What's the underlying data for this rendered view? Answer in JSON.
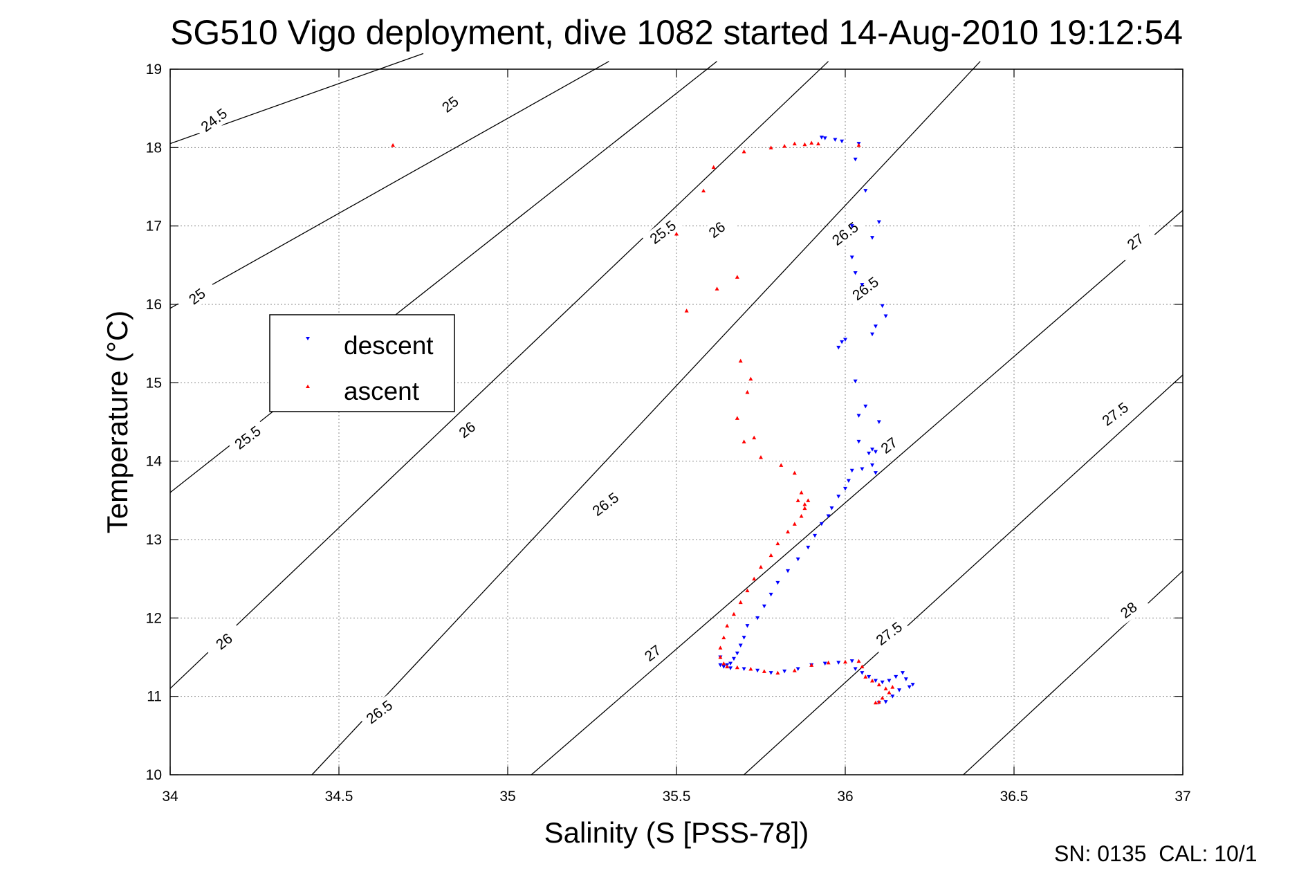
{
  "chart_data": {
    "type": "scatter",
    "title": "SG510 Vigo deployment, dive 1082 started 14-Aug-2010 19:12:54",
    "xlabel": "Salinity (S [PSS-78])",
    "ylabel": "Temperature (°C)",
    "xlim": [
      34,
      37
    ],
    "ylim": [
      10,
      19
    ],
    "xticks": [
      "34",
      "34.5",
      "35",
      "35.5",
      "36",
      "36.5",
      "37"
    ],
    "yticks": [
      "10",
      "11",
      "12",
      "13",
      "14",
      "15",
      "16",
      "17",
      "18",
      "19"
    ],
    "grid": true,
    "legend_position": "center-left",
    "footer": "SN: 0135  CAL: 10/1",
    "colors": {
      "descent": "#0000ff",
      "ascent": "#ff0000",
      "contour": "#000000"
    },
    "density_contours": [
      {
        "sigma": "24.5",
        "lines": [
          {
            "x": [
              34.0,
              34.75
            ],
            "y": [
              18.05,
              19.2
            ]
          }
        ]
      },
      {
        "sigma": "25",
        "lines": [
          {
            "x": [
              34.0,
              35.3
            ],
            "y": [
              15.95,
              19.1
            ]
          }
        ]
      },
      {
        "sigma": "25.5",
        "lines": [
          {
            "x": [
              34.0,
              35.62
            ],
            "y": [
              13.6,
              19.1
            ]
          }
        ]
      },
      {
        "sigma": "26",
        "lines": [
          {
            "x": [
              34.0,
              35.95
            ],
            "y": [
              11.1,
              19.1
            ]
          }
        ]
      },
      {
        "sigma": "26.5",
        "lines": [
          {
            "x": [
              34.42,
              36.4
            ],
            "y": [
              10.0,
              19.1
            ]
          }
        ]
      },
      {
        "sigma": "27",
        "lines": [
          {
            "x": [
              35.07,
              37.0
            ],
            "y": [
              10.0,
              17.2
            ]
          }
        ]
      },
      {
        "sigma": "27.5",
        "lines": [
          {
            "x": [
              35.7,
              37.0
            ],
            "y": [
              10.0,
              15.1
            ]
          }
        ]
      },
      {
        "sigma": "28",
        "lines": [
          {
            "x": [
              36.35,
              37.0
            ],
            "y": [
              10.0,
              12.6
            ]
          }
        ]
      }
    ],
    "contour_labels": [
      {
        "text": "24.5",
        "x": 34.13,
        "y": 18.35
      },
      {
        "text": "25",
        "x": 34.83,
        "y": 18.55
      },
      {
        "text": "25",
        "x": 34.08,
        "y": 16.1
      },
      {
        "text": "25.5",
        "x": 35.46,
        "y": 16.92
      },
      {
        "text": "25.5",
        "x": 34.23,
        "y": 14.3
      },
      {
        "text": "26",
        "x": 35.62,
        "y": 16.95
      },
      {
        "text": "26",
        "x": 34.88,
        "y": 14.4
      },
      {
        "text": "26",
        "x": 34.16,
        "y": 11.7
      },
      {
        "text": "26.5",
        "x": 36.0,
        "y": 16.9
      },
      {
        "text": "26.5",
        "x": 36.06,
        "y": 16.2
      },
      {
        "text": "26.5",
        "x": 35.29,
        "y": 13.45
      },
      {
        "text": "26.5",
        "x": 34.62,
        "y": 10.8
      },
      {
        "text": "27",
        "x": 36.86,
        "y": 16.8
      },
      {
        "text": "27",
        "x": 36.13,
        "y": 14.2
      },
      {
        "text": "27",
        "x": 35.43,
        "y": 11.55
      },
      {
        "text": "27.5",
        "x": 36.8,
        "y": 14.6
      },
      {
        "text": "27.5",
        "x": 36.13,
        "y": 11.8
      },
      {
        "text": "28",
        "x": 36.84,
        "y": 12.1
      }
    ],
    "series": [
      {
        "name": "descent",
        "marker": "triangle-down",
        "x": [
          35.93,
          35.94,
          35.97,
          35.99,
          36.04,
          36.03,
          36.06,
          36.02,
          36.1,
          36.08,
          36.02,
          36.03,
          36.05,
          36.11,
          36.12,
          36.09,
          36.08,
          35.98,
          35.99,
          36.0,
          36.03,
          36.06,
          36.04,
          36.1,
          36.04,
          36.08,
          36.07,
          36.09,
          36.08,
          36.05,
          36.09,
          36.02,
          36.01,
          36.0,
          35.98,
          35.96,
          35.95,
          35.93,
          35.91,
          35.89,
          35.86,
          35.83,
          35.8,
          35.78,
          35.76,
          35.74,
          35.71,
          35.7,
          35.69,
          35.68,
          35.67,
          35.66,
          35.65,
          35.64,
          35.63,
          35.63,
          35.64,
          35.66,
          35.7,
          35.74,
          35.78,
          35.82,
          35.86,
          35.9,
          35.94,
          35.98,
          36.02,
          36.03,
          36.05,
          36.07,
          36.09,
          36.11,
          36.13,
          36.15,
          36.17,
          36.18,
          36.19,
          36.2,
          36.16,
          36.14,
          36.12,
          36.1
        ],
        "y": [
          18.13,
          18.12,
          18.1,
          18.08,
          18.05,
          17.85,
          17.45,
          17.0,
          17.05,
          16.85,
          16.6,
          16.4,
          16.25,
          15.98,
          15.85,
          15.72,
          15.62,
          15.45,
          15.52,
          15.55,
          15.02,
          14.7,
          14.58,
          14.5,
          14.25,
          14.15,
          14.1,
          14.12,
          13.95,
          13.9,
          13.85,
          13.88,
          13.75,
          13.65,
          13.55,
          13.4,
          13.3,
          13.2,
          13.05,
          12.9,
          12.75,
          12.6,
          12.45,
          12.3,
          12.15,
          12.0,
          11.9,
          11.75,
          11.65,
          11.55,
          11.48,
          11.42,
          11.4,
          11.38,
          11.4,
          11.5,
          11.38,
          11.36,
          11.35,
          11.33,
          11.3,
          11.32,
          11.35,
          11.4,
          11.42,
          11.43,
          11.45,
          11.35,
          11.3,
          11.25,
          11.2,
          11.18,
          11.2,
          11.25,
          11.3,
          11.22,
          11.12,
          11.15,
          11.08,
          11.0,
          10.93,
          10.92
        ]
      },
      {
        "name": "ascent",
        "marker": "triangle-up",
        "x": [
          34.66,
          35.7,
          35.78,
          35.82,
          35.85,
          35.88,
          35.9,
          35.92,
          36.04,
          35.61,
          35.58,
          35.5,
          35.68,
          35.62,
          35.53,
          35.69,
          35.72,
          35.71,
          35.68,
          35.7,
          35.73,
          35.75,
          35.81,
          35.85,
          35.87,
          35.86,
          35.88,
          35.89,
          35.88,
          35.87,
          35.85,
          35.83,
          35.8,
          35.78,
          35.75,
          35.73,
          35.71,
          35.69,
          35.67,
          35.65,
          35.64,
          35.63,
          35.63,
          35.64,
          35.65,
          35.68,
          35.72,
          35.76,
          35.8,
          35.85,
          35.9,
          35.95,
          36.0,
          36.04,
          36.05,
          36.06,
          36.08,
          36.1,
          36.12,
          36.14,
          36.13,
          36.11,
          36.1,
          36.09
        ],
        "y": [
          18.03,
          17.95,
          18.0,
          18.02,
          18.05,
          18.04,
          18.06,
          18.05,
          18.03,
          17.75,
          17.45,
          16.9,
          16.35,
          16.2,
          15.92,
          15.28,
          15.05,
          14.88,
          14.55,
          14.25,
          14.3,
          14.05,
          13.95,
          13.85,
          13.6,
          13.5,
          13.45,
          13.5,
          13.4,
          13.3,
          13.2,
          13.1,
          12.95,
          12.8,
          12.65,
          12.5,
          12.35,
          12.2,
          12.05,
          11.9,
          11.75,
          11.62,
          11.5,
          11.42,
          11.38,
          11.37,
          11.35,
          11.32,
          11.3,
          11.33,
          11.4,
          11.43,
          11.44,
          11.45,
          11.38,
          11.25,
          11.2,
          11.15,
          11.1,
          11.12,
          11.05,
          10.98,
          10.93,
          10.92
        ]
      }
    ]
  }
}
